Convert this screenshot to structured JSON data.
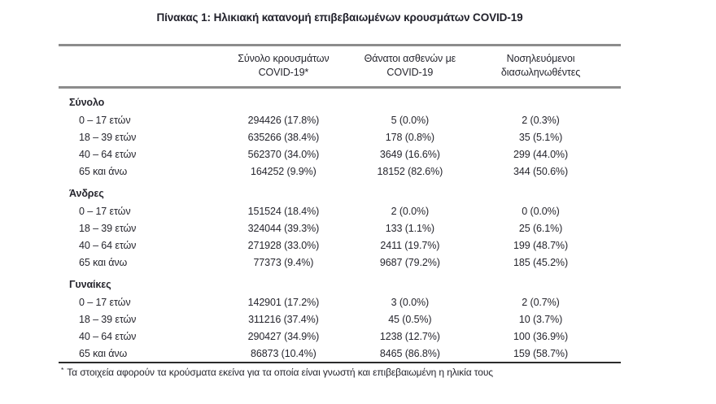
{
  "title": "Πίνακας 1: Ηλικιακή κατανομή επιβεβαιωμένων κρουσμάτων COVID-19",
  "table": {
    "columns": [
      {
        "line1": "",
        "line2": ""
      },
      {
        "line1": "Σύνολο κρουσμάτων",
        "line2": "COVID-19*"
      },
      {
        "line1": "Θάνατοι ασθενών με",
        "line2": "COVID-19"
      },
      {
        "line1": "Νοσηλευόμενοι",
        "line2": "διασωληνωθέντες"
      }
    ],
    "sections": [
      {
        "header": "Σύνολο",
        "rows": [
          {
            "label": "0 – 17 ετών",
            "cases": "294426 (17.8%)",
            "deaths": "5 (0.0%)",
            "intubated": "2 (0.3%)"
          },
          {
            "label": "18 – 39 ετών",
            "cases": "635266 (38.4%)",
            "deaths": "178 (0.8%)",
            "intubated": "35 (5.1%)"
          },
          {
            "label": "40 – 64 ετών",
            "cases": "562370 (34.0%)",
            "deaths": "3649 (16.6%)",
            "intubated": "299 (44.0%)"
          },
          {
            "label": "65 και άνω",
            "cases": "164252 (9.9%)",
            "deaths": "18152 (82.6%)",
            "intubated": "344 (50.6%)"
          }
        ]
      },
      {
        "header": "Άνδρες",
        "rows": [
          {
            "label": "0 – 17 ετών",
            "cases": "151524 (18.4%)",
            "deaths": "2 (0.0%)",
            "intubated": "0 (0.0%)"
          },
          {
            "label": "18 – 39 ετών",
            "cases": "324044 (39.3%)",
            "deaths": "133 (1.1%)",
            "intubated": "25 (6.1%)"
          },
          {
            "label": "40 – 64 ετών",
            "cases": "271928 (33.0%)",
            "deaths": "2411 (19.7%)",
            "intubated": "199 (48.7%)"
          },
          {
            "label": "65 και άνω",
            "cases": "77373 (9.4%)",
            "deaths": "9687 (79.2%)",
            "intubated": "185 (45.2%)"
          }
        ]
      },
      {
        "header": "Γυναίκες",
        "rows": [
          {
            "label": "0 – 17 ετών",
            "cases": "142901 (17.2%)",
            "deaths": "3 (0.0%)",
            "intubated": "2 (0.7%)"
          },
          {
            "label": "18 – 39 ετών",
            "cases": "311216 (37.4%)",
            "deaths": "45 (0.5%)",
            "intubated": "10 (3.7%)"
          },
          {
            "label": "40 – 64 ετών",
            "cases": "290427 (34.9%)",
            "deaths": "1238 (12.7%)",
            "intubated": "100 (36.9%)"
          },
          {
            "label": "65 και άνω",
            "cases": "86873 (10.4%)",
            "deaths": "8465 (86.8%)",
            "intubated": "159 (58.7%)"
          }
        ]
      }
    ]
  },
  "footnote": {
    "marker": "*",
    "text": "Τα στοιχεία αφορούν τα κρούσματα εκείνα για τα οποία είναι γνωστή και επιβεβαιωμένη η ηλικία τους"
  },
  "colors": {
    "background": "#ffffff",
    "text": "#26262e",
    "rule_light": "#8c8c8c",
    "rule_dark": "#2b2b2b"
  }
}
